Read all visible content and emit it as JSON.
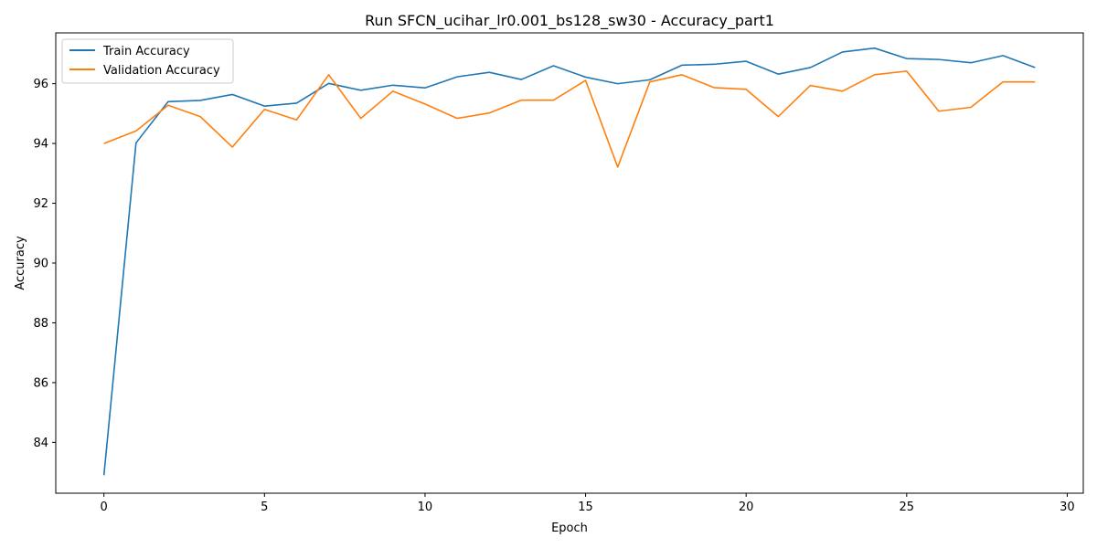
{
  "chart_data": {
    "type": "line",
    "title": "Run SFCN_ucihar_lr0.001_bs128_sw30 - Accuracy_part1",
    "xlabel": "Epoch",
    "ylabel": "Accuracy",
    "xlim": [
      -1.5,
      30.5
    ],
    "ylim": [
      82.3,
      97.7
    ],
    "xticks": [
      0,
      5,
      10,
      15,
      20,
      25,
      30
    ],
    "yticks": [
      84,
      86,
      88,
      90,
      92,
      94,
      96
    ],
    "grid": false,
    "legend_position": "top-left",
    "x": [
      0,
      1,
      2,
      3,
      4,
      5,
      6,
      7,
      8,
      9,
      10,
      11,
      12,
      13,
      14,
      15,
      16,
      17,
      18,
      19,
      20,
      21,
      22,
      23,
      24,
      25,
      26,
      27,
      28,
      29
    ],
    "series": [
      {
        "name": "Train Accuracy",
        "color": "#1f77b4",
        "values": [
          82.9,
          94.02,
          95.4,
          95.44,
          95.64,
          95.25,
          95.35,
          96.01,
          95.78,
          95.95,
          95.86,
          96.23,
          96.38,
          96.14,
          96.6,
          96.22,
          96.0,
          96.13,
          96.62,
          96.65,
          96.75,
          96.32,
          96.54,
          97.06,
          97.19,
          96.84,
          96.81,
          96.7,
          96.94,
          96.54
        ]
      },
      {
        "name": "Validation Accuracy",
        "color": "#ff7f0e",
        "values": [
          94.0,
          94.42,
          95.28,
          94.9,
          93.88,
          95.14,
          94.79,
          96.3,
          94.84,
          95.75,
          95.32,
          94.84,
          95.02,
          95.45,
          95.45,
          96.11,
          93.21,
          96.06,
          96.3,
          95.87,
          95.81,
          94.9,
          95.94,
          95.75,
          96.3,
          96.42,
          95.08,
          95.21,
          96.06,
          96.06
        ]
      }
    ]
  }
}
